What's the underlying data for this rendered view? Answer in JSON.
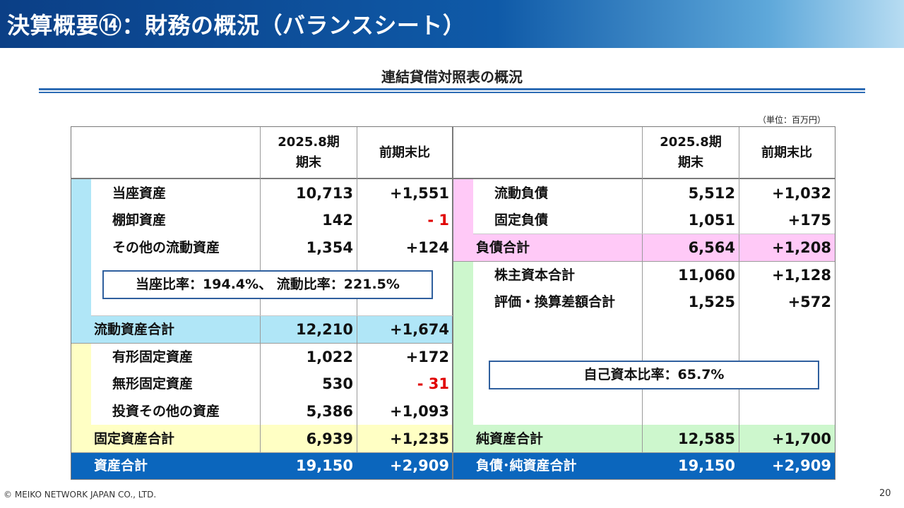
{
  "header": {
    "title": "決算概要⑭：財務の概況（バランスシート）"
  },
  "subtitle": "連結貸借対照表の概況",
  "unit": "（単位：百万円）",
  "table": {
    "col_period": "2025.8期",
    "col_period2": "期末",
    "col_change": "前期末比",
    "assets": {
      "current_items": [
        {
          "label": "当座資産",
          "value": "10,713",
          "change": "+1,551"
        },
        {
          "label": "棚卸資産",
          "value": "142",
          "change": "- 1"
        },
        {
          "label": "その他の流動資産",
          "value": "1,354",
          "change": "+124"
        }
      ],
      "current_total": {
        "label": "流動資産合計",
        "value": "12,210",
        "change": "+1,674"
      },
      "fixed_items": [
        {
          "label": "有形固定資産",
          "value": "1,022",
          "change": "+172"
        },
        {
          "label": "無形固定資産",
          "value": "530",
          "change": "- 31"
        },
        {
          "label": "投資その他の資産",
          "value": "5,386",
          "change": "+1,093"
        }
      ],
      "fixed_total": {
        "label": "固定資産合計",
        "value": "6,939",
        "change": "+1,235"
      },
      "total": {
        "label": "資産合計",
        "value": "19,150",
        "change": "+2,909"
      },
      "ratio_text": "当座比率：194.4%、 流動比率：221.5%"
    },
    "liabilities": {
      "items": [
        {
          "label": "流動負債",
          "value": "5,512",
          "change": "+1,032"
        },
        {
          "label": "固定負債",
          "value": "1,051",
          "change": "+175"
        }
      ],
      "total": {
        "label": "負債合計",
        "value": "6,564",
        "change": "+1,208"
      }
    },
    "equity": {
      "items": [
        {
          "label": "株主資本合計",
          "value": "11,060",
          "change": "+1,128"
        },
        {
          "label": "評価・換算差額合計",
          "value": "1,525",
          "change": "+572"
        }
      ],
      "total": {
        "label": "純資産合計",
        "value": "12,585",
        "change": "+1,700"
      },
      "ratio_text": "自己資本比率：65.7%"
    },
    "grand_total": {
      "label": "負債･純資産合計",
      "value": "19,150",
      "change": "+2,909"
    }
  },
  "footer": {
    "copyright": "© MEIKO NETWORK JAPAN CO., LTD.",
    "page": "20"
  },
  "colors": {
    "header_dark": "#0b3f86",
    "current_assets": "#b0e6f7",
    "fixed_assets": "#ffffc4",
    "liabilities": "#ffc9f7",
    "equity": "#cdf7cd",
    "grand_total": "#0b66bd",
    "negative": "#e00000"
  }
}
